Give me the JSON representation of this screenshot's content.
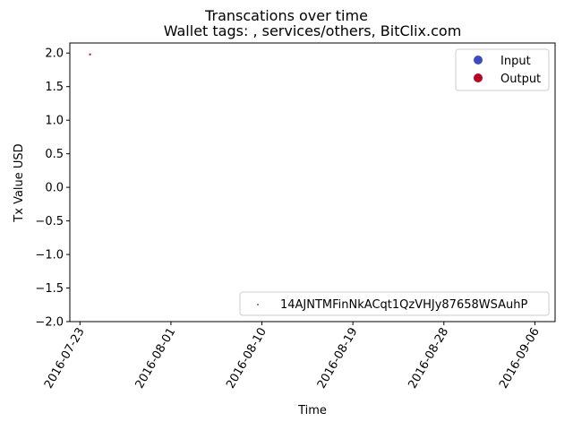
{
  "chart_data": {
    "type": "scatter",
    "title": "Transcations over time",
    "subtitle": "Wallet tags: , services/others, BitClix.com",
    "xlabel": "Time",
    "ylabel": "Tx Value USD",
    "x_axis": {
      "scale": "date",
      "range": [
        "2016-07-22",
        "2016-09-08"
      ],
      "ticks": [
        "2016-07-23",
        "2016-08-01",
        "2016-08-10",
        "2016-08-19",
        "2016-08-28",
        "2016-09-06"
      ]
    },
    "y_axis": {
      "range": [
        -2.0,
        2.15
      ],
      "ticks": [
        -2.0,
        -1.5,
        -1.0,
        -0.5,
        0.0,
        0.5,
        1.0,
        1.5,
        2.0
      ],
      "tick_labels": [
        "−2.0",
        "−1.5",
        "−1.0",
        "−0.5",
        "0.0",
        "0.5",
        "1.0",
        "1.5",
        "2.0"
      ]
    },
    "grid": false,
    "series": [
      {
        "name": "Output",
        "color": "#b40426",
        "points": [
          {
            "x": "2016-07-24",
            "y": 1.98
          }
        ]
      },
      {
        "name": "14AJNTMFinNkACqt1QzVHJy87658WSAuhP",
        "color": "#1f8a70",
        "points": []
      }
    ],
    "legends": [
      {
        "placement": "upper-right",
        "items": [
          {
            "label": "Input",
            "color": "#3b4cc0",
            "marker": "circle"
          },
          {
            "label": "Output",
            "color": "#b40426",
            "marker": "circle"
          }
        ]
      },
      {
        "placement": "lower-right",
        "items": [
          {
            "label": "14AJNTMFinNkACqt1QzVHJy87658WSAuhP",
            "color": "#1f8a70",
            "marker": "dot"
          }
        ]
      }
    ]
  }
}
